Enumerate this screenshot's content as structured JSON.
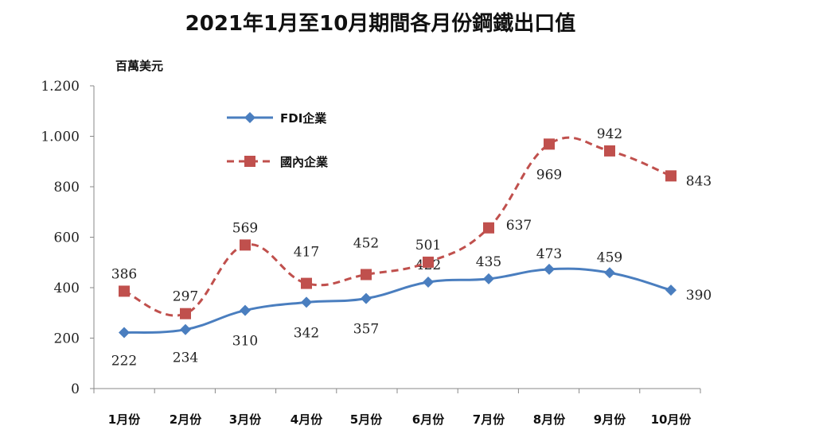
{
  "chart_data": {
    "type": "line",
    "title": "2021年1月至10月期間各月份鋼鐵出口值",
    "ylabel": "百萬美元",
    "xlabel": "",
    "categories": [
      "1月份",
      "2月份",
      "3月份",
      "4月份",
      "5月份",
      "6月份",
      "7月份",
      "8月份",
      "9月份",
      "10月份"
    ],
    "ylim": [
      0,
      1200
    ],
    "yticks": [
      0,
      200,
      400,
      600,
      800,
      1000,
      1200
    ],
    "ytick_labels": [
      "0",
      "200",
      "400",
      "600",
      "800",
      "1.000",
      "1.200"
    ],
    "grid": false,
    "legend": "top-left",
    "series": [
      {
        "name": "FDI企業",
        "values": [
          222,
          234,
          310,
          342,
          357,
          422,
          435,
          473,
          459,
          390
        ],
        "color": "#4a7ebf",
        "marker": "diamond",
        "style": "solid"
      },
      {
        "name": "國內企業",
        "values": [
          386,
          297,
          569,
          417,
          452,
          501,
          637,
          969,
          942,
          843
        ],
        "color": "#c0504d",
        "marker": "square",
        "style": "dashed"
      }
    ]
  }
}
